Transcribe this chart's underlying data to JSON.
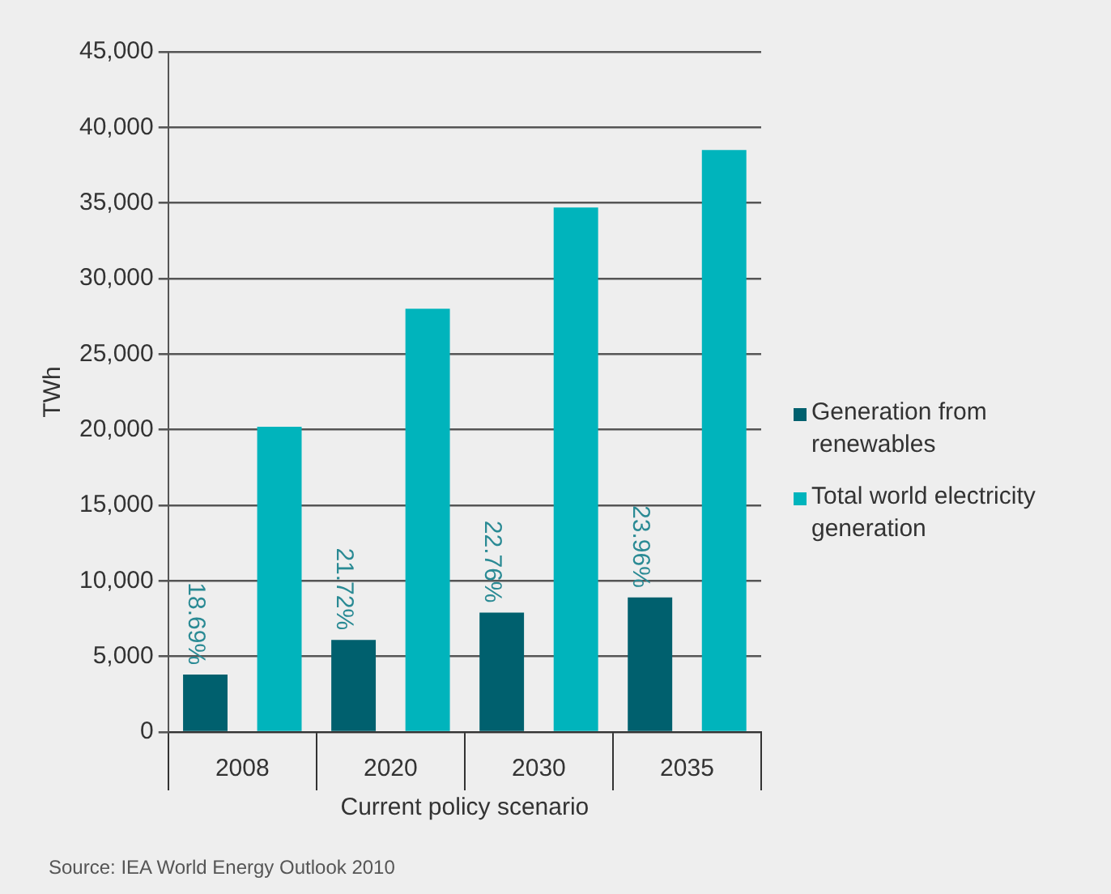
{
  "chart_data": {
    "type": "bar",
    "xlabel": "Current policy scenario",
    "ylabel": "TWh",
    "categories": [
      "2008",
      "2020",
      "2030",
      "2035"
    ],
    "series": [
      {
        "name": "Generation from renewables",
        "color": "#00606e",
        "values": [
          3800,
          6100,
          7900,
          8900
        ]
      },
      {
        "name": "Total world electricity generation",
        "color": "#00b4bc",
        "values": [
          20200,
          28000,
          34700,
          38500
        ]
      }
    ],
    "ylim": [
      0,
      45000
    ],
    "yticks": [
      {
        "value": 0,
        "label": "0"
      },
      {
        "value": 5000,
        "label": "5,000"
      },
      {
        "value": 10000,
        "label": "10,000"
      },
      {
        "value": 15000,
        "label": "15,000"
      },
      {
        "value": 20000,
        "label": "20,000"
      },
      {
        "value": 25000,
        "label": "25,000"
      },
      {
        "value": 30000,
        "label": "30,000"
      },
      {
        "value": 35000,
        "label": "35,000"
      },
      {
        "value": 40000,
        "label": "40,000"
      },
      {
        "value": 45000,
        "label": "45,000"
      }
    ],
    "grid": "y",
    "legend": "right",
    "annotations": [
      "18.69%",
      "21.72%",
      "22.76%",
      "23.96%",
      "Source: IEA World Energy Outlook 2010"
    ]
  }
}
